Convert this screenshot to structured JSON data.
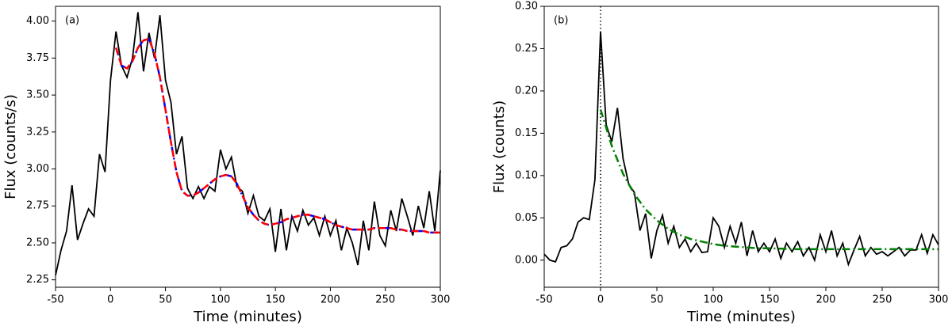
{
  "chart_data": [
    {
      "type": "line",
      "annotation": "(a)",
      "xlabel": "Time (minutes)",
      "ylabel": "Flux (counts/s)",
      "xlim": [
        -50,
        300
      ],
      "xticks": [
        -50,
        0,
        50,
        100,
        150,
        200,
        250,
        300
      ],
      "ylim": [
        2.2,
        4.1
      ],
      "yticks": [
        2.25,
        {
          "value": 2.5,
          "label": "2.50"
        },
        2.75,
        {
          "value": 3,
          "label": "3.00"
        },
        3.25,
        {
          "value": 3.5,
          "label": "3.50"
        },
        3.75,
        {
          "value": 4,
          "label": "4.00"
        }
      ],
      "series": [
        {
          "color": "#000000",
          "style": "solid",
          "x": [
            -50,
            -45,
            -40,
            -35,
            -30,
            -25,
            -20,
            -15,
            -10,
            -5,
            0,
            5,
            10,
            15,
            20,
            25,
            30,
            35,
            40,
            45,
            50,
            55,
            60,
            65,
            70,
            75,
            80,
            85,
            90,
            95,
            100,
            105,
            110,
            115,
            120,
            125,
            130,
            135,
            140,
            145,
            150,
            155,
            160,
            165,
            170,
            175,
            180,
            185,
            190,
            195,
            200,
            205,
            210,
            215,
            220,
            225,
            230,
            235,
            240,
            245,
            250,
            255,
            260,
            265,
            270,
            275,
            280,
            285,
            290,
            295,
            300
          ],
          "values": [
            2.28,
            2.45,
            2.58,
            2.89,
            2.52,
            2.63,
            2.73,
            2.68,
            3.1,
            2.98,
            3.6,
            3.93,
            3.7,
            3.62,
            3.75,
            4.06,
            3.66,
            3.92,
            3.75,
            4.04,
            3.6,
            3.45,
            3.1,
            3.22,
            2.87,
            2.8,
            2.88,
            2.8,
            2.88,
            2.85,
            3.13,
            3.0,
            3.08,
            2.88,
            2.85,
            2.7,
            2.82,
            2.68,
            2.65,
            2.73,
            2.44,
            2.73,
            2.45,
            2.68,
            2.58,
            2.72,
            2.62,
            2.67,
            2.55,
            2.68,
            2.55,
            2.65,
            2.45,
            2.6,
            2.5,
            2.35,
            2.65,
            2.45,
            2.78,
            2.55,
            2.48,
            2.72,
            2.58,
            2.8,
            2.68,
            2.55,
            2.75,
            2.6,
            2.85,
            2.58,
            2.99
          ]
        },
        {
          "color": "#0000ff",
          "style": "dashdot",
          "x": [
            5,
            10,
            15,
            20,
            25,
            30,
            35,
            40,
            45,
            50,
            55,
            60,
            65,
            70,
            75,
            80,
            85,
            90,
            95,
            100,
            105,
            110,
            115,
            120,
            125,
            130,
            135,
            140,
            145,
            150,
            155,
            160,
            165,
            170,
            175,
            180,
            185,
            190,
            195,
            200,
            205,
            210,
            215,
            220,
            225,
            230,
            235,
            240,
            245,
            250,
            255,
            260,
            265,
            270,
            275,
            280,
            285,
            290,
            295,
            300
          ],
          "values": [
            3.82,
            3.7,
            3.68,
            3.73,
            3.82,
            3.87,
            3.88,
            3.78,
            3.62,
            3.4,
            3.18,
            2.98,
            2.85,
            2.82,
            2.82,
            2.84,
            2.87,
            2.9,
            2.93,
            2.95,
            2.96,
            2.95,
            2.9,
            2.82,
            2.74,
            2.69,
            2.65,
            2.63,
            2.62,
            2.63,
            2.64,
            2.66,
            2.67,
            2.68,
            2.69,
            2.69,
            2.68,
            2.67,
            2.66,
            2.64,
            2.62,
            2.61,
            2.6,
            2.59,
            2.59,
            2.59,
            2.59,
            2.6,
            2.6,
            2.6,
            2.6,
            2.59,
            2.59,
            2.58,
            2.58,
            2.58,
            2.58,
            2.57,
            2.57,
            2.57
          ]
        },
        {
          "color": "#ff0000",
          "style": "dashed",
          "x": [
            5,
            10,
            15,
            20,
            25,
            30,
            35,
            40,
            45,
            50,
            55,
            60,
            65,
            70,
            75,
            80,
            85,
            90,
            95,
            100,
            105,
            110,
            115,
            120,
            125,
            130,
            135,
            140,
            145,
            150,
            155,
            160,
            165,
            170,
            175,
            180,
            185,
            190,
            195,
            200,
            205,
            210,
            215,
            220,
            225,
            230,
            235,
            240,
            245,
            250,
            255,
            260,
            265,
            270,
            275,
            280,
            285,
            290,
            295,
            300
          ],
          "values": [
            3.82,
            3.7,
            3.68,
            3.73,
            3.82,
            3.87,
            3.88,
            3.78,
            3.62,
            3.4,
            3.18,
            2.98,
            2.85,
            2.82,
            2.82,
            2.84,
            2.87,
            2.9,
            2.93,
            2.95,
            2.96,
            2.95,
            2.9,
            2.82,
            2.74,
            2.69,
            2.65,
            2.63,
            2.62,
            2.63,
            2.64,
            2.66,
            2.67,
            2.68,
            2.69,
            2.69,
            2.68,
            2.67,
            2.66,
            2.64,
            2.62,
            2.61,
            2.6,
            2.59,
            2.59,
            2.59,
            2.59,
            2.6,
            2.6,
            2.6,
            2.6,
            2.59,
            2.59,
            2.58,
            2.58,
            2.58,
            2.58,
            2.57,
            2.57,
            2.57
          ]
        }
      ]
    },
    {
      "type": "line",
      "annotation": "(b)",
      "xlabel": "Time (minutes)",
      "ylabel": "Flux (counts)",
      "vline": 0,
      "xlim": [
        -50,
        300
      ],
      "xticks": [
        -50,
        0,
        50,
        100,
        150,
        200,
        250,
        300
      ],
      "ylim": [
        -0.032,
        0.3
      ],
      "yticks": [
        {
          "value": 0,
          "label": "0.00"
        },
        0.05,
        {
          "value": 0.1,
          "label": "0.10"
        },
        0.15,
        {
          "value": 0.2,
          "label": "0.20"
        },
        0.25,
        {
          "value": 0.3,
          "label": "0.30"
        }
      ],
      "series": [
        {
          "color": "#000000",
          "style": "solid",
          "x": [
            -50,
            -45,
            -40,
            -35,
            -30,
            -25,
            -20,
            -15,
            -10,
            -5,
            0,
            5,
            10,
            15,
            20,
            25,
            30,
            35,
            40,
            45,
            50,
            55,
            60,
            65,
            70,
            75,
            80,
            85,
            90,
            95,
            100,
            105,
            110,
            115,
            120,
            125,
            130,
            135,
            140,
            145,
            150,
            155,
            160,
            165,
            170,
            175,
            180,
            185,
            190,
            195,
            200,
            205,
            210,
            215,
            220,
            225,
            230,
            235,
            240,
            245,
            250,
            255,
            260,
            265,
            270,
            275,
            280,
            285,
            290,
            295,
            300
          ],
          "values": [
            0.007,
            0.0,
            -0.002,
            0.015,
            0.017,
            0.025,
            0.045,
            0.05,
            0.048,
            0.095,
            0.27,
            0.16,
            0.14,
            0.18,
            0.12,
            0.09,
            0.08,
            0.035,
            0.055,
            0.002,
            0.035,
            0.053,
            0.02,
            0.04,
            0.015,
            0.025,
            0.01,
            0.02,
            0.009,
            0.01,
            0.05,
            0.04,
            0.015,
            0.04,
            0.02,
            0.045,
            0.005,
            0.035,
            0.01,
            0.02,
            0.01,
            0.025,
            0.002,
            0.02,
            0.01,
            0.022,
            0.005,
            0.015,
            0.0,
            0.03,
            0.01,
            0.035,
            0.005,
            0.02,
            -0.005,
            0.012,
            0.028,
            0.005,
            0.015,
            0.007,
            0.01,
            0.005,
            0.01,
            0.015,
            0.005,
            0.012,
            0.012,
            0.03,
            0.008,
            0.03,
            0.018
          ]
        },
        {
          "color": "#008000",
          "style": "dashdot",
          "x": [
            0,
            10,
            20,
            30,
            40,
            50,
            60,
            70,
            80,
            90,
            100,
            110,
            120,
            130,
            140,
            150,
            160,
            170,
            180,
            190,
            200,
            210,
            220,
            230,
            240,
            250,
            260,
            270,
            280,
            290,
            300
          ],
          "values": [
            0.178,
            0.135,
            0.102,
            0.078,
            0.06,
            0.047,
            0.037,
            0.03,
            0.025,
            0.022,
            0.019,
            0.017,
            0.016,
            0.015,
            0.014,
            0.014,
            0.0135,
            0.013,
            0.013,
            0.013,
            0.013,
            0.013,
            0.013,
            0.013,
            0.013,
            0.013,
            0.013,
            0.013,
            0.013,
            0.013,
            0.013
          ]
        }
      ]
    }
  ]
}
